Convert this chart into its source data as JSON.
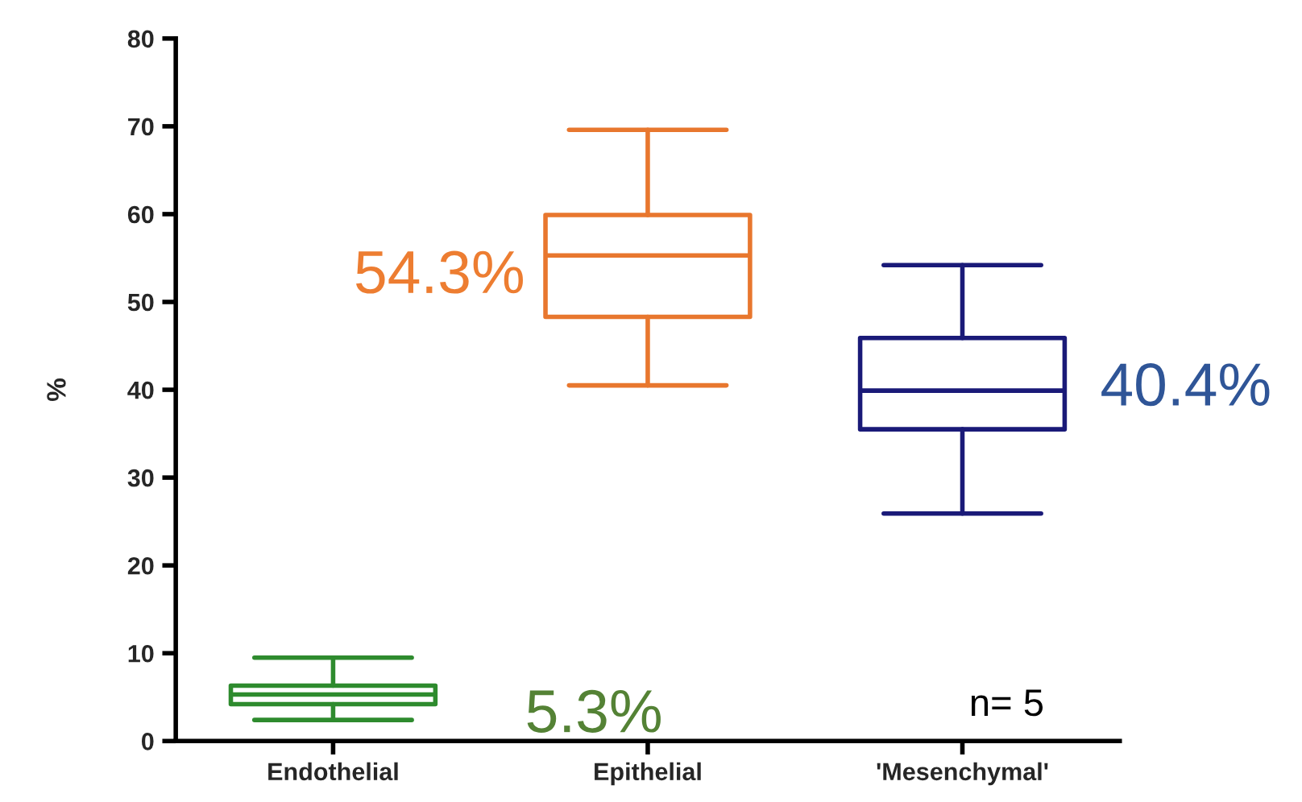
{
  "chart_data": {
    "type": "box",
    "ylabel": "%",
    "categories": [
      "Endothelial",
      "Epithelial",
      "'Mesenchymal'"
    ],
    "colors": [
      "#2e8b2e",
      "#e8772e",
      "#1a1a78"
    ],
    "boxes": [
      {
        "low": 2.4,
        "q1": 4.2,
        "median": 5.3,
        "q3": 6.3,
        "high": 9.5
      },
      {
        "low": 40.5,
        "q1": 48.3,
        "median": 55.3,
        "q3": 59.9,
        "high": 69.6
      },
      {
        "low": 25.9,
        "q1": 35.5,
        "median": 39.9,
        "q3": 45.9,
        "high": 54.2
      }
    ],
    "ylim": [
      0,
      80
    ],
    "yticks": [
      0,
      10,
      20,
      30,
      40,
      50,
      60,
      70,
      80
    ],
    "annotations": [
      "5.3%",
      "54.3%",
      "40.4%",
      "n= 5"
    ]
  }
}
